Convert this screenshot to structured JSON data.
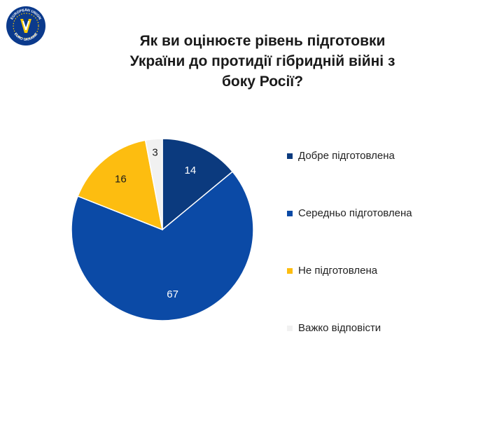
{
  "logo": {
    "icon": "eurointegration-logo-icon",
    "text_top": "EUROPEAN UNION",
    "text_bottom": "EURO UKRAINE",
    "colors": {
      "background": "#0b3a8c",
      "ring": "#ffcc00"
    }
  },
  "chart_data": {
    "type": "pie",
    "title_lines": [
      "Як ви оцінюєте рівень підготовки",
      "України до протидії гібридній війні з",
      "боку Росії?"
    ],
    "slices": [
      {
        "label": "Добре підготовлена",
        "value": 14,
        "color": "#0b3a7e",
        "label_color": "#ffffff"
      },
      {
        "label": "Середньо підготовлена",
        "value": 67,
        "color": "#0b4aa6",
        "label_color": "#ffffff"
      },
      {
        "label": "Не підготовлена",
        "value": 16,
        "color": "#fdbd10",
        "label_color": "#1a1a1a"
      },
      {
        "label": "Важко відповісти",
        "value": 3,
        "color": "#f1f1f1",
        "label_color": "#1a1a1a"
      }
    ],
    "start_angle_deg": 0,
    "direction": "clockwise",
    "legend_placement": "right"
  }
}
